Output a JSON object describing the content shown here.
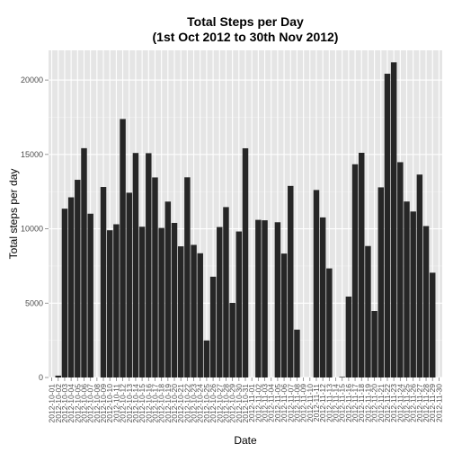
{
  "chart_data": {
    "type": "bar",
    "title_line1": "Total Steps per Day",
    "title_line2": "(1st Oct 2012 to 30th Nov 2012)",
    "xlabel": "Date",
    "ylabel": "Total steps per day",
    "ylim": [
      0,
      22000
    ],
    "yticks": [
      0,
      5000,
      10000,
      15000,
      20000
    ],
    "grid": true,
    "bar_color": "#262626",
    "panel_color": "#e5e5e5",
    "grid_color": "#ffffff",
    "categories": [
      "2012-10-01",
      "2012-10-02",
      "2012-10-03",
      "2012-10-04",
      "2012-10-05",
      "2012-10-06",
      "2012-10-07",
      "2012-10-08",
      "2012-10-09",
      "2012-10-10",
      "2012-10-11",
      "2012-10-12",
      "2012-10-13",
      "2012-10-14",
      "2012-10-15",
      "2012-10-16",
      "2012-10-17",
      "2012-10-18",
      "2012-10-19",
      "2012-10-20",
      "2012-10-21",
      "2012-10-22",
      "2012-10-23",
      "2012-10-24",
      "2012-10-25",
      "2012-10-26",
      "2012-10-27",
      "2012-10-28",
      "2012-10-29",
      "2012-10-30",
      "2012-10-31",
      "2012-11-01",
      "2012-11-02",
      "2012-11-03",
      "2012-11-04",
      "2012-11-05",
      "2012-11-06",
      "2012-11-07",
      "2012-11-08",
      "2012-11-09",
      "2012-11-10",
      "2012-11-11",
      "2012-11-12",
      "2012-11-13",
      "2012-11-14",
      "2012-11-15",
      "2012-11-16",
      "2012-11-17",
      "2012-11-18",
      "2012-11-19",
      "2012-11-20",
      "2012-11-21",
      "2012-11-22",
      "2012-11-23",
      "2012-11-24",
      "2012-11-25",
      "2012-11-26",
      "2012-11-27",
      "2012-11-28",
      "2012-11-29",
      "2012-11-30"
    ],
    "values": [
      0,
      126,
      11352,
      12116,
      13294,
      15420,
      11015,
      0,
      12811,
      9900,
      10304,
      17382,
      12426,
      15098,
      10139,
      15084,
      13452,
      10056,
      11829,
      10395,
      8821,
      13460,
      8918,
      8355,
      2492,
      6778,
      10119,
      11458,
      5018,
      9819,
      15414,
      0,
      10600,
      10571,
      0,
      10439,
      8334,
      12883,
      3219,
      0,
      0,
      12608,
      10765,
      7336,
      0,
      41,
      5441,
      14339,
      15110,
      8841,
      4472,
      12787,
      20427,
      21194,
      14478,
      11834,
      11162,
      13646,
      10183,
      7047,
      0
    ]
  }
}
